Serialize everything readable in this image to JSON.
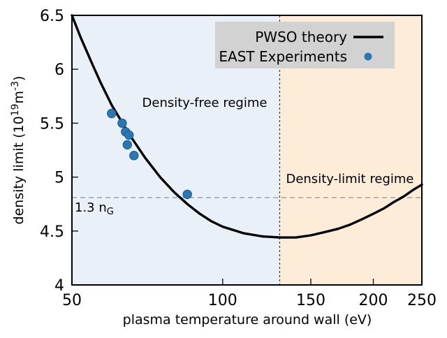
{
  "chart_data": {
    "type": "line",
    "title": "",
    "x_axis": {
      "label": "plasma temperature around wall (eV)",
      "scale": "log",
      "range": [
        50,
        250
      ],
      "ticks": [
        50,
        100,
        150,
        200,
        250
      ],
      "tick_labels": [
        "50",
        "100",
        "150",
        "200",
        "250"
      ]
    },
    "y_axis": {
      "label_prefix": "density limit (10",
      "label_sup": "19",
      "label_mid": "m",
      "label_sup2": "-3",
      "label_suffix": ")",
      "scale": "linear",
      "range": [
        4,
        6.5
      ],
      "ticks": [
        4,
        4.5,
        5,
        5.5,
        6,
        6.5
      ],
      "tick_labels": [
        "4",
        "4.5",
        "5",
        "5.5",
        "6",
        "6.5"
      ]
    },
    "series": [
      {
        "name": "PWSO theory",
        "type": "line",
        "color": "#000000",
        "line_width": 3.4,
        "x": [
          50,
          52,
          55,
          57,
          60,
          65,
          70,
          75,
          80,
          85,
          90,
          95,
          100,
          110,
          120,
          130,
          140,
          150,
          160,
          170,
          180,
          190,
          200,
          210,
          220,
          230,
          240,
          250
        ],
        "y": [
          6.5,
          6.3,
          6.04,
          5.88,
          5.67,
          5.4,
          5.18,
          5.0,
          4.86,
          4.75,
          4.66,
          4.59,
          4.54,
          4.48,
          4.45,
          4.44,
          4.44,
          4.46,
          4.49,
          4.52,
          4.56,
          4.61,
          4.66,
          4.71,
          4.77,
          4.82,
          4.88,
          4.93
        ]
      },
      {
        "name": "EAST Experiments",
        "type": "scatter",
        "color": "#2878b4",
        "edge_color": "#1b5a86",
        "marker_radius": 6.2,
        "x": [
          60,
          63,
          64,
          65,
          64.5,
          66.5,
          85
        ],
        "y": [
          5.59,
          5.5,
          5.42,
          5.39,
          5.3,
          5.2,
          4.84
        ]
      }
    ],
    "regions": [
      {
        "label": "Density-free regime",
        "x_from": 50,
        "x_to": 130,
        "fill": "#e9f0f8",
        "label_color": "#3984b3"
      },
      {
        "label": "Density-limit regime",
        "x_from": 130,
        "x_to": 250,
        "fill": "#fdecd8",
        "label_color": "#d4622d"
      }
    ],
    "annotations": {
      "vline": {
        "x": 130,
        "color": "#3a3a3a",
        "dash": "3,3"
      },
      "hline": {
        "y": 4.81,
        "color": "#999999",
        "dash": "7,5",
        "label_prefix": "1.3 n",
        "label_sub": "G",
        "label_color": "#3984b3"
      }
    },
    "legend": {
      "background": "#d2d2d2",
      "entries": [
        {
          "label": "PWSO theory",
          "marker": "line",
          "color": "#000000"
        },
        {
          "label": "EAST Experiments",
          "marker": "dot",
          "color": "#2878b4"
        }
      ]
    }
  }
}
